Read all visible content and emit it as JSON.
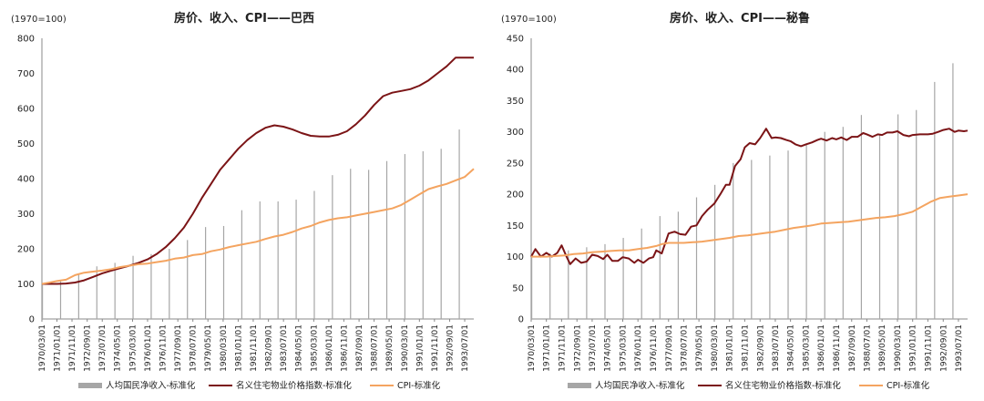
{
  "chart_data": [
    {
      "type": "bar+line",
      "title": "房价、收入、CPI——巴西",
      "unit_label": "(1970=100)",
      "ylim": [
        0,
        800
      ],
      "yticks": [
        0,
        100,
        200,
        300,
        400,
        500,
        600,
        700,
        800
      ],
      "x_range": [
        1970.17,
        1994.0
      ],
      "xtick_labels": [
        "1970/03/01",
        "1971/01/01",
        "1971/11/01",
        "1972/09/01",
        "1973/07/01",
        "1974/05/01",
        "1975/03/01",
        "1976/01/01",
        "1976/11/01",
        "1977/09/01",
        "1978/07/01",
        "1979/05/01",
        "1980/03/01",
        "1981/01/01",
        "1981/11/01",
        "1982/09/01",
        "1983/07/01",
        "1984/05/01",
        "1985/03/01",
        "1986/01/01",
        "1986/11/01",
        "1987/09/01",
        "1988/07/01",
        "1989/05/01",
        "1990/03/01",
        "1991/01/01",
        "1991/11/01",
        "1992/09/01",
        "1993/07/01"
      ],
      "xtick_positions": [
        1970.17,
        1971.0,
        1971.83,
        1972.67,
        1973.5,
        1974.33,
        1975.17,
        1976.0,
        1976.83,
        1977.67,
        1978.5,
        1979.33,
        1980.17,
        1981.0,
        1981.83,
        1982.67,
        1983.5,
        1984.33,
        1985.17,
        1986.0,
        1986.83,
        1987.67,
        1988.5,
        1989.33,
        1990.17,
        1991.0,
        1991.83,
        1992.67,
        1993.5
      ],
      "series": [
        {
          "name": "人均国民净收入-标准化",
          "kind": "bar",
          "color": "#a6a6a6",
          "x": [
            1970.2,
            1971.2,
            1972.2,
            1973.2,
            1974.2,
            1975.2,
            1976.2,
            1977.2,
            1978.2,
            1979.2,
            1980.2,
            1981.2,
            1982.2,
            1983.2,
            1984.2,
            1985.2,
            1986.2,
            1987.2,
            1988.2,
            1989.2,
            1990.2,
            1991.2,
            1992.2,
            1993.2
          ],
          "values": [
            100,
            110,
            128,
            150,
            160,
            180,
            185,
            200,
            225,
            262,
            265,
            310,
            335,
            335,
            340,
            365,
            410,
            428,
            425,
            450,
            470,
            478,
            485,
            540
          ]
        },
        {
          "name": "名义住宅物业价格指数-标准化",
          "kind": "line",
          "color": "#7b1416",
          "x": [
            1970.17,
            1971.0,
            1971.5,
            1972.0,
            1972.5,
            1973.0,
            1973.5,
            1974.0,
            1974.5,
            1975.0,
            1975.5,
            1976.0,
            1976.5,
            1977.0,
            1977.5,
            1978.0,
            1978.5,
            1979.0,
            1979.5,
            1980.0,
            1980.5,
            1981.0,
            1981.5,
            1982.0,
            1982.5,
            1983.0,
            1983.5,
            1984.0,
            1984.5,
            1985.0,
            1985.5,
            1986.0,
            1986.5,
            1987.0,
            1987.5,
            1988.0,
            1988.5,
            1989.0,
            1989.5,
            1990.0,
            1990.5,
            1991.0,
            1991.5,
            1992.0,
            1992.5,
            1993.0,
            1993.5,
            1994.0
          ],
          "values": [
            100,
            100,
            101,
            104,
            110,
            120,
            130,
            138,
            145,
            152,
            160,
            170,
            185,
            205,
            230,
            260,
            300,
            345,
            385,
            425,
            455,
            485,
            510,
            530,
            545,
            552,
            548,
            540,
            530,
            522,
            520,
            520,
            525,
            535,
            555,
            580,
            610,
            635,
            645,
            650,
            655,
            665,
            680,
            700,
            720,
            745,
            745,
            745
          ]
        },
        {
          "name": "CPI-标准化",
          "kind": "line",
          "color": "#f4a460",
          "x": [
            1970.17,
            1970.5,
            1971.0,
            1971.5,
            1972.0,
            1972.5,
            1973.0,
            1973.5,
            1974.0,
            1974.5,
            1975.0,
            1975.5,
            1976.0,
            1976.5,
            1977.0,
            1977.5,
            1978.0,
            1978.5,
            1979.0,
            1979.5,
            1980.0,
            1980.5,
            1981.0,
            1981.5,
            1982.0,
            1982.5,
            1983.0,
            1983.5,
            1984.0,
            1984.5,
            1985.0,
            1985.5,
            1986.0,
            1986.5,
            1987.0,
            1987.5,
            1988.0,
            1988.5,
            1989.0,
            1989.5,
            1990.0,
            1990.5,
            1991.0,
            1991.5,
            1992.0,
            1992.5,
            1993.0,
            1993.5,
            1994.0
          ],
          "values": [
            100,
            103,
            108,
            112,
            125,
            132,
            135,
            138,
            142,
            148,
            152,
            156,
            158,
            162,
            166,
            172,
            175,
            182,
            185,
            193,
            198,
            205,
            210,
            215,
            220,
            228,
            235,
            240,
            248,
            258,
            265,
            275,
            282,
            287,
            290,
            295,
            300,
            305,
            310,
            315,
            325,
            340,
            355,
            370,
            378,
            385,
            395,
            405,
            428
          ]
        }
      ]
    },
    {
      "type": "bar+line",
      "title": "房价、收入、CPI——秘鲁",
      "unit_label": "(1970=100)",
      "ylim": [
        0,
        450
      ],
      "yticks": [
        0,
        50,
        100,
        150,
        200,
        250,
        300,
        350,
        400,
        450
      ],
      "x_range": [
        1970.17,
        1994.0
      ],
      "xtick_labels": [
        "1970/03/01",
        "1971/01/01",
        "1971/11/01",
        "1972/09/01",
        "1973/07/01",
        "1974/05/01",
        "1975/03/01",
        "1976/01/01",
        "1976/11/01",
        "1977/09/01",
        "1978/07/01",
        "1979/05/01",
        "1980/03/01",
        "1981/01/01",
        "1981/11/01",
        "1982/09/01",
        "1983/07/01",
        "1984/05/01",
        "1985/03/01",
        "1986/01/01",
        "1986/11/01",
        "1987/09/01",
        "1988/07/01",
        "1989/05/01",
        "1990/03/01",
        "1991/01/01",
        "1991/11/01",
        "1992/09/01",
        "1993/07/01"
      ],
      "xtick_positions": [
        1970.17,
        1971.0,
        1971.83,
        1972.67,
        1973.5,
        1974.33,
        1975.17,
        1976.0,
        1976.83,
        1977.67,
        1978.5,
        1979.33,
        1980.17,
        1981.0,
        1981.83,
        1982.67,
        1983.5,
        1984.33,
        1985.17,
        1986.0,
        1986.83,
        1987.67,
        1988.5,
        1989.33,
        1990.17,
        1991.0,
        1991.83,
        1992.67,
        1993.5
      ],
      "series": [
        {
          "name": "人均国民净收入-标准化",
          "kind": "bar",
          "color": "#a6a6a6",
          "x": [
            1970.2,
            1971.2,
            1972.2,
            1973.2,
            1974.2,
            1975.2,
            1976.2,
            1977.2,
            1978.2,
            1979.2,
            1980.2,
            1981.2,
            1982.2,
            1983.2,
            1984.2,
            1985.2,
            1986.2,
            1987.2,
            1988.2,
            1989.2,
            1990.2,
            1991.2,
            1992.2,
            1993.2
          ],
          "values": [
            100,
            105,
            110,
            115,
            120,
            130,
            145,
            165,
            172,
            195,
            215,
            250,
            255,
            262,
            270,
            280,
            300,
            308,
            327,
            295,
            328,
            335,
            380,
            410
          ]
        },
        {
          "name": "名义住宅物业价格指数-标准化",
          "kind": "line",
          "color": "#7b1416",
          "x": [
            1970.17,
            1970.4,
            1970.7,
            1971.0,
            1971.3,
            1971.6,
            1971.83,
            1972.1,
            1972.3,
            1972.6,
            1972.9,
            1973.2,
            1973.5,
            1973.8,
            1974.1,
            1974.33,
            1974.6,
            1974.9,
            1975.17,
            1975.5,
            1975.8,
            1976.0,
            1976.3,
            1976.6,
            1976.83,
            1977.0,
            1977.3,
            1977.67,
            1978.0,
            1978.3,
            1978.6,
            1978.9,
            1979.2,
            1979.5,
            1979.8,
            1980.17,
            1980.5,
            1980.8,
            1981.0,
            1981.3,
            1981.6,
            1981.83,
            1982.1,
            1982.4,
            1982.67,
            1983.0,
            1983.3,
            1983.5,
            1983.8,
            1984.1,
            1984.33,
            1984.6,
            1984.9,
            1985.17,
            1985.5,
            1985.8,
            1986.0,
            1986.3,
            1986.6,
            1986.83,
            1987.1,
            1987.4,
            1987.67,
            1988.0,
            1988.3,
            1988.5,
            1988.8,
            1989.1,
            1989.33,
            1989.6,
            1989.9,
            1990.17,
            1990.5,
            1990.8,
            1991.0,
            1991.4,
            1991.83,
            1992.1,
            1992.4,
            1992.67,
            1993.0,
            1993.3,
            1993.5,
            1993.8,
            1994.0
          ],
          "values": [
            100,
            112,
            100,
            106,
            100,
            106,
            118,
            100,
            88,
            97,
            90,
            92,
            103,
            101,
            96,
            103,
            93,
            93,
            99,
            97,
            90,
            95,
            90,
            97,
            99,
            110,
            105,
            137,
            140,
            136,
            135,
            148,
            150,
            165,
            175,
            185,
            200,
            215,
            215,
            245,
            256,
            275,
            282,
            280,
            290,
            305,
            290,
            291,
            290,
            287,
            285,
            280,
            277,
            280,
            283,
            287,
            289,
            286,
            290,
            288,
            291,
            287,
            292,
            292,
            298,
            296,
            292,
            296,
            295,
            299,
            299,
            301,
            295,
            293,
            295,
            296,
            296,
            297,
            300,
            303,
            305,
            300,
            302,
            301,
            302
          ]
        },
        {
          "name": "CPI-标准化",
          "kind": "line",
          "color": "#f4a460",
          "x": [
            1970.17,
            1970.5,
            1971.0,
            1971.5,
            1972.0,
            1972.5,
            1973.0,
            1973.5,
            1974.0,
            1974.5,
            1975.0,
            1975.5,
            1976.0,
            1976.5,
            1977.0,
            1977.3,
            1977.67,
            1978.0,
            1978.5,
            1979.0,
            1979.5,
            1980.0,
            1980.5,
            1981.0,
            1981.5,
            1982.0,
            1982.5,
            1983.0,
            1983.5,
            1984.0,
            1984.5,
            1985.0,
            1985.5,
            1986.0,
            1986.5,
            1987.0,
            1987.5,
            1988.0,
            1988.5,
            1989.0,
            1989.5,
            1990.0,
            1990.5,
            1991.0,
            1991.5,
            1992.0,
            1992.5,
            1993.0,
            1993.5,
            1994.0
          ],
          "values": [
            100,
            100,
            100,
            101,
            102,
            104,
            105,
            107,
            108,
            109,
            110,
            110,
            112,
            114,
            117,
            120,
            122,
            122,
            122,
            123,
            124,
            126,
            128,
            130,
            133,
            134,
            136,
            138,
            140,
            143,
            146,
            148,
            150,
            153,
            154,
            155,
            156,
            158,
            160,
            162,
            163,
            165,
            168,
            172,
            180,
            188,
            194,
            196,
            198,
            200
          ]
        }
      ]
    }
  ],
  "legend": [
    {
      "label": "人均国民净收入-标准化",
      "color": "#a6a6a6",
      "kind": "bar"
    },
    {
      "label": "名义住宅物业价格指数-标准化",
      "color": "#7b1416",
      "kind": "line"
    },
    {
      "label": "CPI-标准化",
      "color": "#f4a460",
      "kind": "line"
    }
  ]
}
